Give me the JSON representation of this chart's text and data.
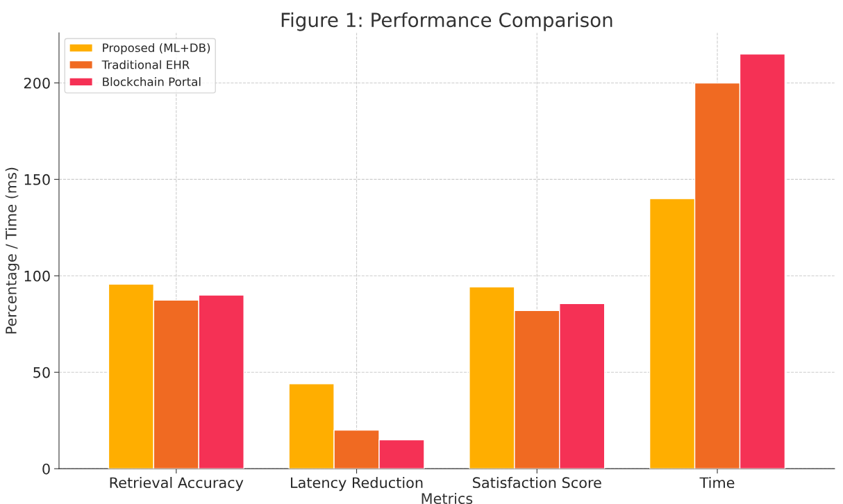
{
  "chart_data": {
    "type": "bar",
    "title": "Figure 1: Performance Comparison",
    "xlabel": "Metrics",
    "ylabel": "Percentage / Time (ms)",
    "categories": [
      "Retrieval Accuracy",
      "Latency Reduction",
      "Satisfaction Score",
      "Time"
    ],
    "series": [
      {
        "name": "Proposed (ML+DB)",
        "color": "#ffae00",
        "values": [
          95.7,
          44,
          94.2,
          140
        ]
      },
      {
        "name": "Traditional EHR",
        "color": "#f06a22",
        "values": [
          87.4,
          20,
          82,
          200
        ]
      },
      {
        "name": "Blockchain Portal",
        "color": "#f53155",
        "values": [
          90,
          15,
          85.6,
          215
        ]
      }
    ],
    "ylim": [
      0,
      226
    ],
    "yticks": [
      0,
      50,
      100,
      150,
      200
    ],
    "grid": true,
    "legend": "top left"
  }
}
